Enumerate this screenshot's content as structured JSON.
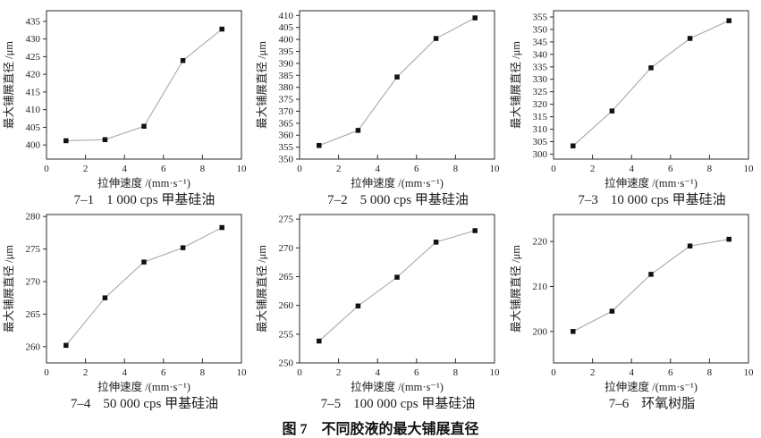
{
  "figure_title": "图 7　不同胶液的最大铺展直径",
  "chart_data": [
    {
      "type": "line",
      "id": "7–1",
      "caption": "1 000 cps 甲基硅油",
      "title": "7–1  1 000 cps 甲基硅油",
      "xlabel": "拉伸速度 /(mm·s⁻¹)",
      "ylabel": "最大铺展直径 /μm",
      "x": [
        1,
        3,
        5,
        7,
        9
      ],
      "values": [
        401.2,
        401.5,
        405.3,
        423.9,
        432.8
      ],
      "xlim": [
        0,
        10
      ],
      "ylim": [
        396,
        438
      ],
      "xticks": [
        0,
        2,
        4,
        6,
        8,
        10
      ],
      "yticks": [
        400,
        405,
        410,
        415,
        420,
        425,
        430,
        435
      ],
      "line_color": "#a8a8a8",
      "marker": "square",
      "marker_color": "#111111",
      "axis_color": "#2b2b2b",
      "grid": false,
      "legend": false
    },
    {
      "type": "line",
      "id": "7–2",
      "caption": "5 000 cps 甲基硅油",
      "title": "7–2  5 000 cps 甲基硅油",
      "xlabel": "拉伸速度 /(mm·s⁻¹)",
      "ylabel": "最大铺展直径 /μm",
      "x": [
        1,
        3,
        5,
        7,
        9
      ],
      "values": [
        355.7,
        362.0,
        384.3,
        400.4,
        409.0
      ],
      "xlim": [
        0,
        10
      ],
      "ylim": [
        350,
        412
      ],
      "xticks": [
        0,
        2,
        4,
        6,
        8,
        10
      ],
      "yticks": [
        350,
        355,
        360,
        365,
        370,
        375,
        380,
        385,
        390,
        395,
        400,
        405,
        410
      ],
      "line_color": "#a8a8a8",
      "marker": "square",
      "marker_color": "#111111",
      "axis_color": "#2b2b2b",
      "grid": false,
      "legend": false
    },
    {
      "type": "line",
      "id": "7–3",
      "caption": "10 000 cps 甲基硅油",
      "title": "7–3  10 000 cps 甲基硅油",
      "xlabel": "拉伸速度 /(mm·s⁻¹)",
      "ylabel": "最大铺展直径 /μm",
      "x": [
        1,
        3,
        5,
        7,
        9
      ],
      "values": [
        303.3,
        317.3,
        334.6,
        346.4,
        353.5
      ],
      "xlim": [
        0,
        10
      ],
      "ylim": [
        298,
        357.5
      ],
      "xticks": [
        0,
        2,
        4,
        6,
        8,
        10
      ],
      "yticks": [
        300,
        305,
        310,
        315,
        320,
        325,
        330,
        335,
        340,
        345,
        350,
        355
      ],
      "line_color": "#a8a8a8",
      "marker": "square",
      "marker_color": "#111111",
      "axis_color": "#2b2b2b",
      "grid": false,
      "legend": false
    },
    {
      "type": "line",
      "id": "7–4",
      "caption": "50 000 cps 甲基硅油",
      "title": "7–4  50 000 cps 甲基硅油",
      "xlabel": "拉伸速度 /(mm·s⁻¹)",
      "ylabel": "最大铺展直径 /μm",
      "x": [
        1,
        3,
        5,
        7,
        9
      ],
      "values": [
        260.2,
        267.5,
        273.0,
        275.2,
        278.3
      ],
      "xlim": [
        0,
        10
      ],
      "ylim": [
        257.5,
        280.3
      ],
      "xticks": [
        0,
        2,
        4,
        6,
        8,
        10
      ],
      "yticks": [
        260,
        265,
        270,
        275,
        280
      ],
      "line_color": "#a8a8a8",
      "marker": "square",
      "marker_color": "#111111",
      "axis_color": "#2b2b2b",
      "grid": false,
      "legend": false
    },
    {
      "type": "line",
      "id": "7–5",
      "caption": "100 000 cps 甲基硅油",
      "title": "7–5  100 000 cps 甲基硅油",
      "xlabel": "拉伸速度 /(mm·s⁻¹)",
      "ylabel": "最大铺展直径 /μm",
      "x": [
        1,
        3,
        5,
        7,
        9
      ],
      "values": [
        253.8,
        259.9,
        264.9,
        271.0,
        273.0
      ],
      "xlim": [
        0,
        10
      ],
      "ylim": [
        250,
        275.8
      ],
      "xticks": [
        0,
        2,
        4,
        6,
        8,
        10
      ],
      "yticks": [
        250,
        255,
        260,
        265,
        270,
        275
      ],
      "line_color": "#a8a8a8",
      "marker": "square",
      "marker_color": "#111111",
      "axis_color": "#2b2b2b",
      "grid": false,
      "legend": false
    },
    {
      "type": "line",
      "id": "7–6",
      "caption": "环氧树脂",
      "title": "7–6  环氧树脂",
      "xlabel": "拉伸速度 /(mm·s⁻¹)",
      "ylabel": "最大铺展直径 /μm",
      "x": [
        1,
        3,
        5,
        7,
        9
      ],
      "values": [
        200.0,
        204.5,
        212.7,
        219.0,
        220.5
      ],
      "xlim": [
        0,
        10
      ],
      "ylim": [
        193,
        226
      ],
      "xticks": [
        0,
        2,
        4,
        6,
        8,
        10
      ],
      "yticks": [
        200,
        210,
        220
      ],
      "line_color": "#a8a8a8",
      "marker": "square",
      "marker_color": "#111111",
      "axis_color": "#2b2b2b",
      "grid": false,
      "legend": false
    }
  ]
}
